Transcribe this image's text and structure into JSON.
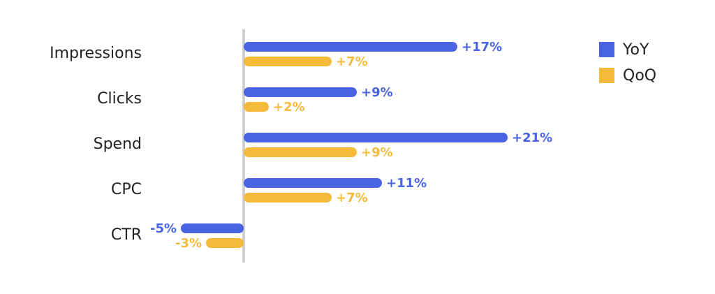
{
  "chart_data": {
    "type": "bar",
    "orientation": "horizontal",
    "categories": [
      "Impressions",
      "Clicks",
      "Spend",
      "CPC",
      "CTR"
    ],
    "series": [
      {
        "name": "YoY",
        "color": "#4a63e2",
        "values": [
          17,
          9,
          21,
          11,
          -5
        ],
        "value_labels": [
          "+17%",
          "+9%",
          "+21%",
          "+11%",
          "-5%"
        ]
      },
      {
        "name": "QoQ",
        "color": "#f6ba3b",
        "values": [
          7,
          2,
          9,
          7,
          -3
        ],
        "value_labels": [
          "+7%",
          "+2%",
          "+9%",
          "+7%",
          "-3%"
        ]
      }
    ],
    "xlim": [
      -8,
      22
    ],
    "legend": "top-right"
  }
}
